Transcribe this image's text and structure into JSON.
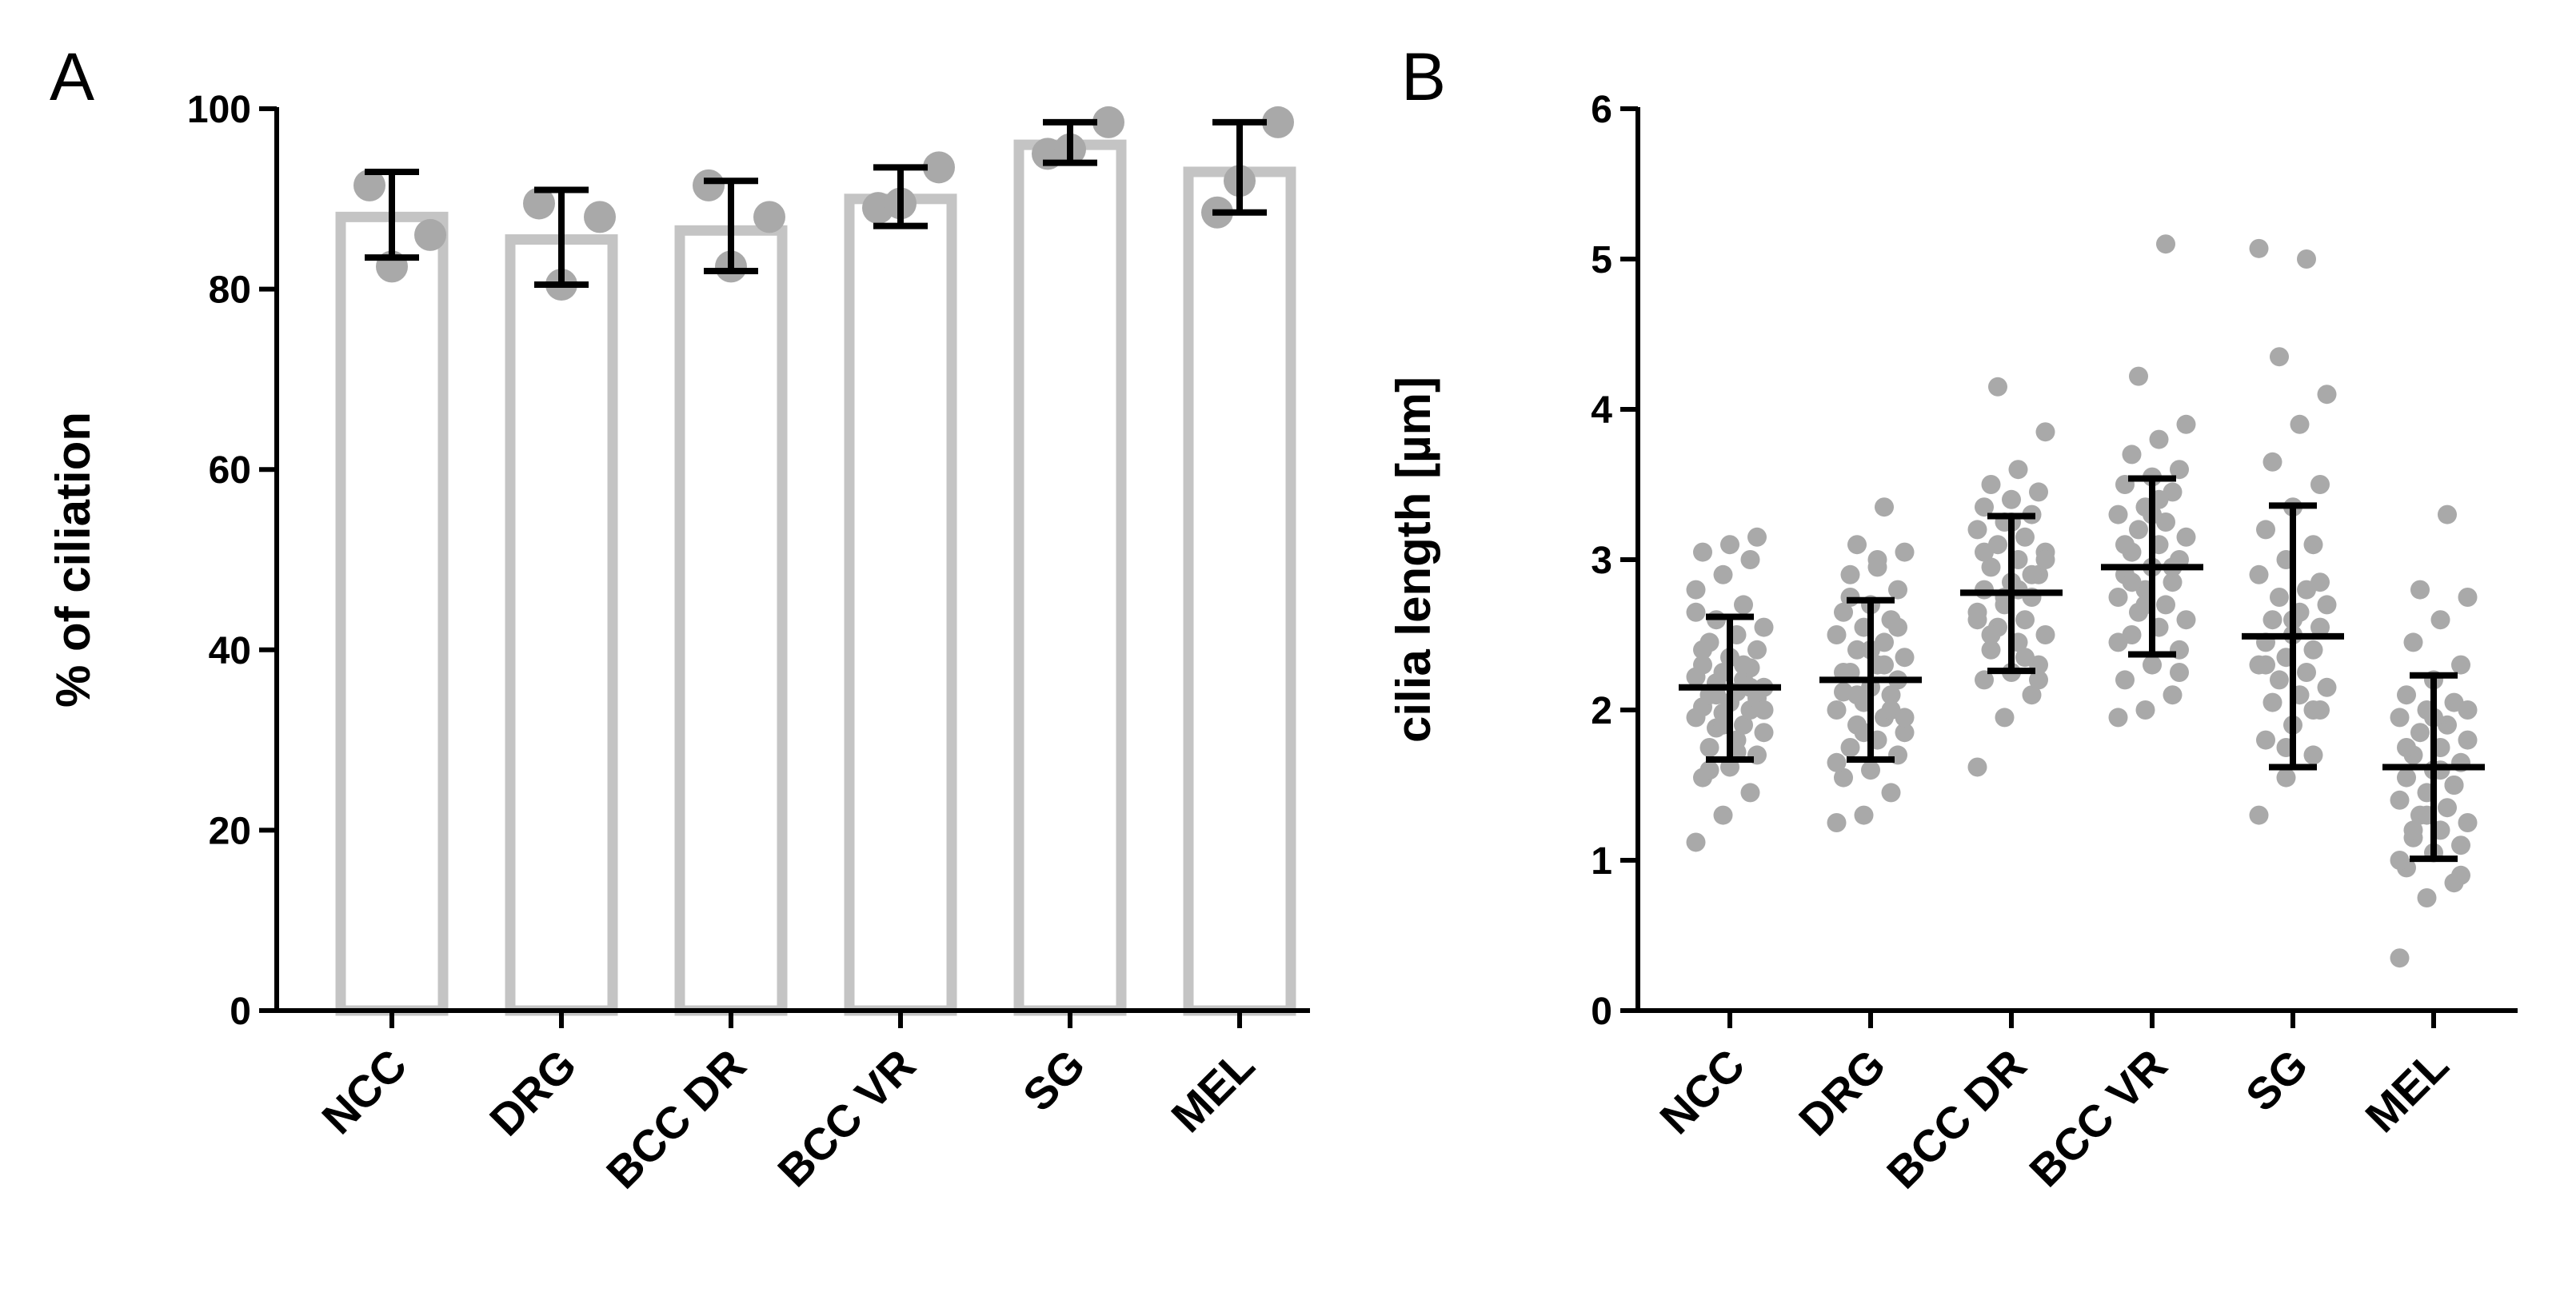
{
  "chart_data": [
    {
      "panel": "A",
      "type": "bar",
      "title": "",
      "xlabel": "",
      "ylabel": "% of ciliation",
      "ylim": [
        0,
        100
      ],
      "yticks": [
        0,
        20,
        40,
        60,
        80,
        100
      ],
      "categories": [
        "NCC",
        "DRG",
        "BCC DR",
        "BCC VR",
        "SG",
        "MEL"
      ],
      "values": [
        88,
        85.5,
        86.5,
        90,
        96,
        93
      ],
      "error_low": [
        83.5,
        80.5,
        82,
        87,
        94,
        88.5
      ],
      "error_high": [
        93,
        91,
        92,
        93.5,
        98.5,
        98.5
      ],
      "points": [
        [
          91.5,
          86,
          82.5
        ],
        [
          89.5,
          88,
          80.5
        ],
        [
          91.5,
          88,
          82.5
        ],
        [
          89,
          93.5,
          89.5
        ],
        [
          95,
          98.5,
          95.5
        ],
        [
          88.5,
          98.5,
          92
        ]
      ],
      "bar_color": "#c4c4c4",
      "point_color": "#a9a9a9",
      "error_color": "#000000"
    },
    {
      "panel": "B",
      "type": "scatter",
      "title": "",
      "xlabel": "",
      "ylabel": "cilia length [µm]",
      "ylim": [
        0,
        6
      ],
      "yticks": [
        0,
        1,
        2,
        3,
        4,
        5,
        6
      ],
      "categories": [
        "NCC",
        "DRG",
        "BCC DR",
        "BCC VR",
        "SG",
        "MEL"
      ],
      "mean": [
        2.15,
        2.2,
        2.78,
        2.95,
        2.49,
        1.62
      ],
      "sd_low": [
        1.67,
        1.67,
        2.26,
        2.37,
        1.62,
        1.01
      ],
      "sd_high": [
        2.62,
        2.73,
        3.29,
        3.54,
        3.36,
        2.23
      ],
      "points": [
        [
          1.12,
          1.3,
          1.45,
          1.55,
          1.62,
          1.7,
          1.75,
          1.8,
          1.85,
          1.88,
          1.9,
          1.95,
          1.98,
          2.0,
          2.02,
          2.05,
          2.08,
          2.1,
          2.12,
          2.15,
          2.18,
          2.2,
          2.22,
          2.25,
          2.28,
          2.3,
          2.35,
          2.4,
          2.45,
          2.5,
          2.55,
          2.6,
          2.7,
          2.8,
          2.9,
          3.0,
          3.05,
          3.1,
          3.15,
          1.6,
          1.72,
          2.0,
          2.1,
          2.3,
          2.65,
          1.9,
          2.15,
          2.4
        ],
        [
          1.25,
          1.3,
          1.45,
          1.55,
          1.6,
          1.7,
          1.75,
          1.8,
          1.85,
          1.9,
          1.95,
          2.0,
          2.05,
          2.1,
          2.12,
          2.15,
          2.2,
          2.25,
          2.3,
          2.35,
          2.4,
          2.45,
          2.5,
          2.55,
          2.6,
          2.65,
          2.7,
          2.8,
          2.9,
          3.0,
          3.05,
          3.1,
          3.35,
          1.65,
          1.85,
          2.0,
          2.25,
          2.4,
          2.55,
          2.75,
          2.95,
          1.95,
          2.1,
          2.3
        ],
        [
          1.62,
          1.95,
          2.1,
          2.2,
          2.25,
          2.3,
          2.4,
          2.45,
          2.5,
          2.55,
          2.6,
          2.65,
          2.7,
          2.75,
          2.8,
          2.85,
          2.9,
          2.95,
          3.0,
          3.05,
          3.1,
          3.15,
          3.2,
          3.25,
          3.3,
          3.35,
          3.4,
          3.45,
          3.5,
          3.6,
          3.85,
          4.15,
          2.35,
          2.6,
          2.75,
          2.9,
          3.05,
          3.25,
          2.2,
          2.5,
          2.8,
          3.0
        ],
        [
          1.95,
          2.0,
          2.1,
          2.2,
          2.3,
          2.4,
          2.5,
          2.55,
          2.6,
          2.65,
          2.7,
          2.75,
          2.8,
          2.85,
          2.9,
          2.95,
          3.0,
          3.05,
          3.1,
          3.15,
          3.2,
          3.25,
          3.3,
          3.35,
          3.45,
          3.5,
          3.55,
          3.6,
          3.7,
          3.8,
          3.9,
          4.22,
          5.1,
          2.45,
          2.7,
          2.95,
          3.1,
          3.3,
          2.25,
          2.85,
          3.4
        ],
        [
          1.3,
          1.55,
          1.7,
          1.8,
          1.9,
          2.0,
          2.05,
          2.1,
          2.15,
          2.2,
          2.25,
          2.3,
          2.35,
          2.4,
          2.45,
          2.5,
          2.55,
          2.6,
          2.65,
          2.7,
          2.75,
          2.8,
          2.9,
          3.0,
          3.1,
          3.2,
          3.35,
          3.5,
          3.65,
          3.9,
          4.1,
          4.35,
          5.0,
          5.07,
          1.75,
          2.0,
          2.3,
          2.6,
          2.85
        ],
        [
          0.35,
          0.75,
          0.85,
          0.95,
          1.05,
          1.1,
          1.15,
          1.2,
          1.25,
          1.3,
          1.35,
          1.4,
          1.45,
          1.5,
          1.55,
          1.6,
          1.65,
          1.7,
          1.75,
          1.8,
          1.85,
          1.9,
          1.95,
          2.0,
          2.05,
          2.1,
          2.2,
          2.3,
          2.45,
          2.6,
          2.75,
          2.8,
          3.3,
          1.0,
          1.3,
          1.5,
          1.75,
          1.95,
          0.9,
          1.2,
          1.6,
          2.0
        ]
      ],
      "point_color": "#a9a9a9",
      "error_color": "#000000"
    }
  ],
  "panels": {
    "A": "A",
    "B": "B"
  }
}
